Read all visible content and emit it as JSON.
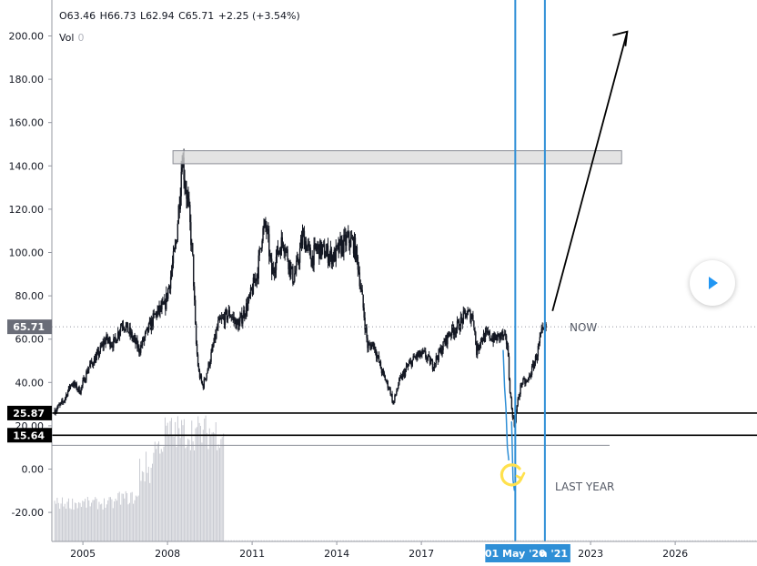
{
  "legend": {
    "open_label": "O",
    "open": "63.46",
    "high_label": "H",
    "high": "66.73",
    "low_label": "L",
    "low": "62.94",
    "close_label": "C",
    "close": "65.71",
    "change": "+2.25 (+3.54%)",
    "vol_label": "Vol",
    "vol_value": "0"
  },
  "annotations": {
    "now": "NOW",
    "last_year": "LAST YEAR"
  },
  "colors": {
    "candles": "#131722",
    "volume": "#c8cad1",
    "vline": "#2f8fd6",
    "arrow": "#000000",
    "resistance_box": "#d9d9d9",
    "circle_marker": "#ffe14d",
    "price_tag_current": "#6a6d78",
    "price_tag_level": "#000000"
  },
  "icons": {
    "play": "play-icon",
    "circular_arrow": "circular-arrow-icon"
  },
  "chart_data": {
    "type": "candlestick",
    "x_ticks": [
      "2005",
      "2008",
      "2011",
      "2014",
      "2017",
      "2023",
      "2026"
    ],
    "y_ticks": [
      "200.00",
      "180.00",
      "160.00",
      "140.00",
      "120.00",
      "100.00",
      "80.00",
      "60.00",
      "40.00",
      "20.00",
      "0.00",
      "-20.00"
    ],
    "ylim": [
      -30,
      210
    ],
    "xlim": [
      2003.9,
      2028.5
    ],
    "last_price_tag": "65.71",
    "level_tags": [
      "25.87",
      "15.64"
    ],
    "horizontal_levels": [
      25.87,
      15.64
    ],
    "resistance_zone": {
      "x_start": 2008.0,
      "x_end": 2024.1,
      "y_low": 141,
      "y_high": 147
    },
    "vertical_markers": [
      {
        "date_label": "01 May '20",
        "x": 2020.33
      },
      {
        "date_label": "n '21",
        "x": 2021.38
      }
    ],
    "projection_arrow": {
      "from": {
        "x": 2021.65,
        "y": 73
      },
      "to": {
        "x": 2024.3,
        "y": 202
      }
    },
    "weekly_close_path": [
      [
        2004.0,
        27
      ],
      [
        2004.3,
        31
      ],
      [
        2004.6,
        40
      ],
      [
        2004.9,
        36
      ],
      [
        2005.2,
        47
      ],
      [
        2005.5,
        52
      ],
      [
        2005.8,
        60
      ],
      [
        2006.1,
        58
      ],
      [
        2006.4,
        68
      ],
      [
        2006.7,
        62
      ],
      [
        2007.0,
        55
      ],
      [
        2007.3,
        64
      ],
      [
        2007.6,
        72
      ],
      [
        2007.9,
        75
      ],
      [
        2008.1,
        88
      ],
      [
        2008.3,
        104
      ],
      [
        2008.45,
        130
      ],
      [
        2008.52,
        146
      ],
      [
        2008.6,
        135
      ],
      [
        2008.75,
        120
      ],
      [
        2008.9,
        95
      ],
      [
        2009.0,
        60
      ],
      [
        2009.1,
        45
      ],
      [
        2009.25,
        38
      ],
      [
        2009.5,
        50
      ],
      [
        2009.8,
        67
      ],
      [
        2010.2,
        72
      ],
      [
        2010.5,
        66
      ],
      [
        2010.9,
        78
      ],
      [
        2011.2,
        92
      ],
      [
        2011.35,
        109
      ],
      [
        2011.5,
        112
      ],
      [
        2011.7,
        90
      ],
      [
        2011.9,
        100
      ],
      [
        2012.1,
        106
      ],
      [
        2012.3,
        96
      ],
      [
        2012.45,
        88
      ],
      [
        2012.6,
        94
      ],
      [
        2012.8,
        108
      ],
      [
        2013.1,
        97
      ],
      [
        2013.3,
        102
      ],
      [
        2013.6,
        100
      ],
      [
        2013.9,
        98
      ],
      [
        2014.1,
        102
      ],
      [
        2014.4,
        106
      ],
      [
        2014.6,
        104
      ],
      [
        2014.75,
        95
      ],
      [
        2014.95,
        73
      ],
      [
        2015.1,
        56
      ],
      [
        2015.3,
        58
      ],
      [
        2015.6,
        45
      ],
      [
        2015.9,
        36
      ],
      [
        2016.0,
        30
      ],
      [
        2016.2,
        40
      ],
      [
        2016.5,
        47
      ],
      [
        2016.8,
        52
      ],
      [
        2017.1,
        53
      ],
      [
        2017.4,
        48
      ],
      [
        2017.7,
        55
      ],
      [
        2018.0,
        63
      ],
      [
        2018.3,
        66
      ],
      [
        2018.6,
        72
      ],
      [
        2018.85,
        70
      ],
      [
        2018.95,
        54
      ],
      [
        2019.1,
        60
      ],
      [
        2019.35,
        62
      ],
      [
        2019.6,
        60
      ],
      [
        2019.85,
        62
      ],
      [
        2020.05,
        58
      ],
      [
        2020.12,
        40
      ],
      [
        2020.2,
        28
      ],
      [
        2020.3,
        20
      ],
      [
        2020.4,
        30
      ],
      [
        2020.55,
        40
      ],
      [
        2020.75,
        40
      ],
      [
        2020.95,
        47
      ],
      [
        2021.1,
        53
      ],
      [
        2021.25,
        62
      ],
      [
        2021.4,
        65
      ],
      [
        2021.45,
        65.71
      ]
    ]
  }
}
